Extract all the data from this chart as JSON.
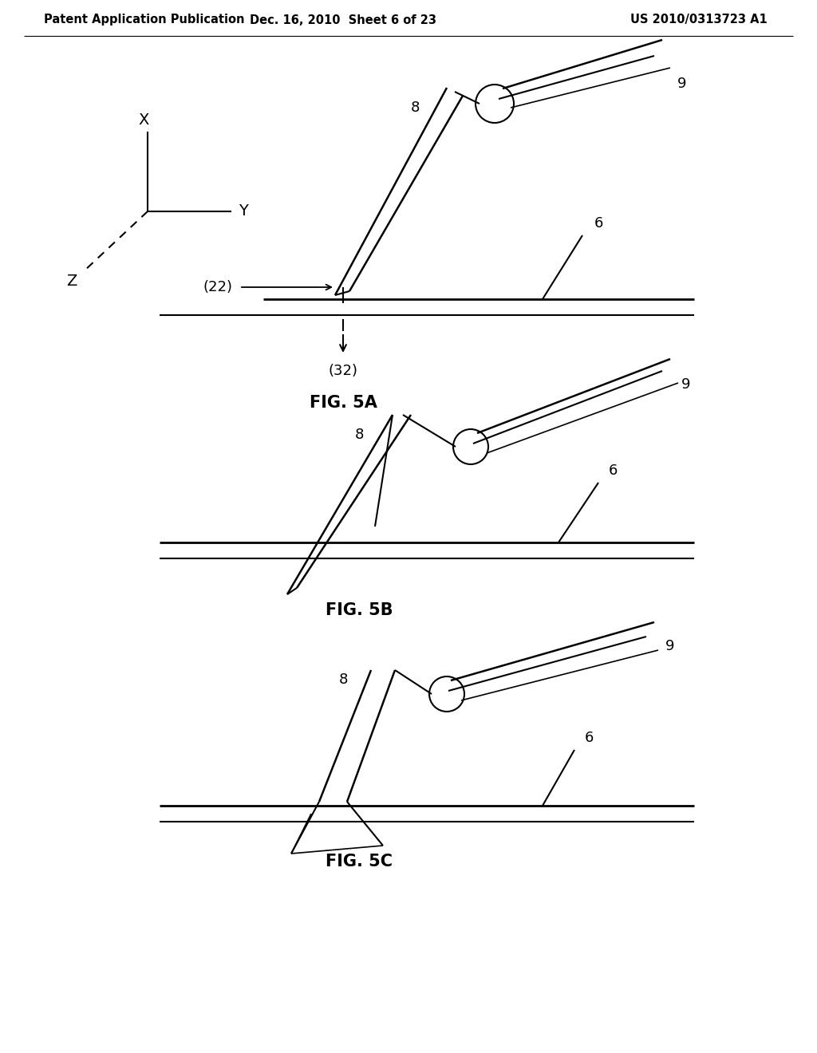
{
  "header_left": "Patent Application Publication",
  "header_mid": "Dec. 16, 2010  Sheet 6 of 23",
  "header_right": "US 2010/0313723 A1",
  "fig5a_label": "FIG. 5A",
  "fig5b_label": "FIG. 5B",
  "fig5c_label": "FIG. 5C",
  "label_8": "8",
  "label_9": "9",
  "label_6": "6",
  "label_22": "(22)",
  "label_32": "(32)",
  "label_X": "X",
  "label_Y": "Y",
  "label_Z": "Z",
  "bg_color": "#ffffff",
  "line_color": "#000000",
  "header_fontsize": 10.5,
  "label_fontsize": 13,
  "fig_label_fontsize": 15
}
